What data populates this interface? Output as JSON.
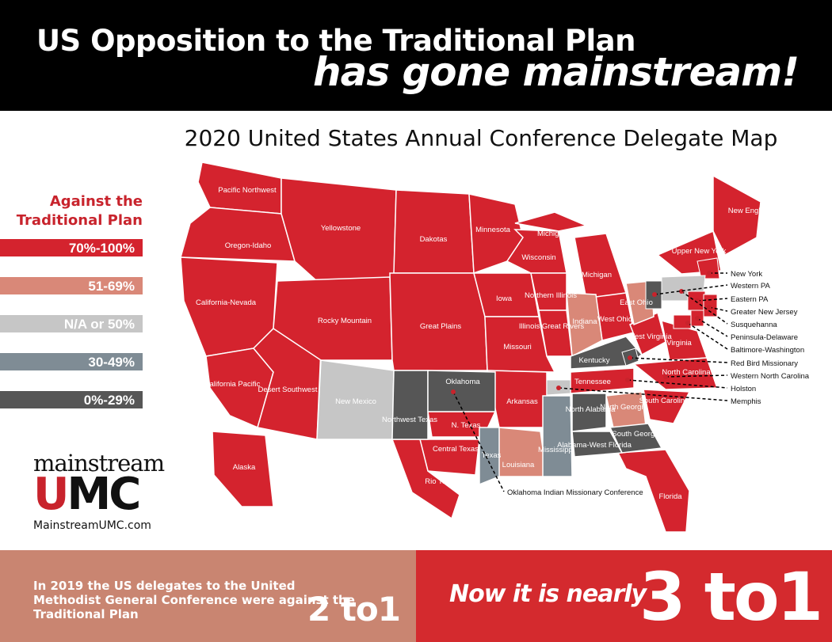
{
  "header": {
    "title_line1": "US Opposition to the Traditional Plan",
    "title_line2": "has gone mainstream!"
  },
  "map": {
    "title": "2020 United States Annual Conference Delegate Map",
    "legend": {
      "title": "Against the Traditional Plan",
      "items": [
        {
          "label": "70%-100%",
          "color": "#d4232e",
          "regions": [
            "Pacific Northwest",
            "Oregon-Idaho",
            "Yellowstone",
            "California-Nevada",
            "California Pacific",
            "Desert Southwest",
            "Alaska",
            "Rocky Mountain",
            "Dakotas",
            "Minnesota",
            "Great Plains",
            "Iowa",
            "Wisconsin",
            "Michigan",
            "Michigan",
            "Northern Illinois",
            "Illinois Great Rivers",
            "Missouri",
            "Arkansas",
            "N. Texas",
            "Central Texas",
            "Rio Texas",
            "West Ohio",
            "West Virginia",
            "Virginia",
            "North Carolina",
            "South Carolina",
            "Florida",
            "New England",
            "Upper New York",
            "Tennessee"
          ],
          "callouts": [
            "New York",
            "Eastern PA",
            "Greater New Jersey",
            "Peninsula-Delaware",
            "Baltimore-Washington",
            "Western North Carolina",
            "Holston"
          ]
        },
        {
          "label": "51-69%",
          "color": "#d98878",
          "regions": [
            "Indiana",
            "East Ohio",
            "North Georgia",
            "Louisiana"
          ],
          "callouts": []
        },
        {
          "label": "N/A or 50%",
          "color": "#c6c6c6",
          "regions": [
            "New Mexico"
          ],
          "callouts": [
            "Susquehanna",
            "Memphis"
          ]
        },
        {
          "label": "30-49%",
          "color": "#7f8c95",
          "regions": [
            "Texas",
            "Mississippi"
          ],
          "callouts": []
        },
        {
          "label": "0%-29%",
          "color": "#565656",
          "regions": [
            "Northwest Texas",
            "Oklahoma",
            "Kentucky",
            "North Alabama",
            "Alabama-West Florida",
            "South Georgia"
          ],
          "callouts": [
            "Western PA",
            "Red Bird Missionary",
            "Oklahoma Indian Missionary Conference"
          ]
        }
      ]
    }
  },
  "logo": {
    "name": "mainstream",
    "mark": "UMC",
    "url": "MainstreamUMC.com"
  },
  "footer": {
    "left_text": "In 2019 the US delegates to the United Methodist General Conference were against the Traditional Plan",
    "left_ratio": "2 to1",
    "right_text": "Now it is nearly",
    "right_ratio": "3 to1"
  }
}
